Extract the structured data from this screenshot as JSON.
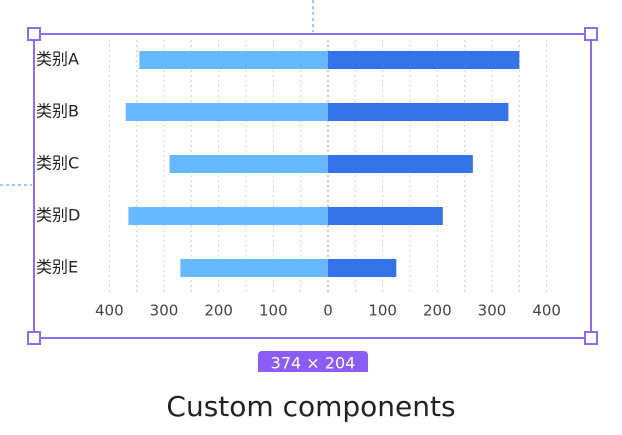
{
  "chart_data": {
    "type": "butterfly",
    "categories": [
      "类别A",
      "类别B",
      "类别C",
      "类别D",
      "类别E"
    ],
    "series": [
      {
        "color": "#66b8ff",
        "values": [
          -345,
          -370,
          -290,
          -365,
          -270
        ]
      },
      {
        "color": "#3574e8",
        "values": [
          350,
          330,
          265,
          210,
          125
        ]
      }
    ],
    "xlim": [
      -450,
      450
    ],
    "xticks": [
      {
        "value": -400,
        "label": "400"
      },
      {
        "value": -300,
        "label": "300"
      },
      {
        "value": -200,
        "label": "200"
      },
      {
        "value": -100,
        "label": "100"
      },
      0,
      100,
      200,
      300,
      400
    ],
    "minor_xticks": [
      -350,
      -250,
      -150,
      -50,
      50,
      150,
      250,
      350
    ],
    "grid": true
  },
  "selection_size": "374 × 204",
  "caption": "Custom components"
}
